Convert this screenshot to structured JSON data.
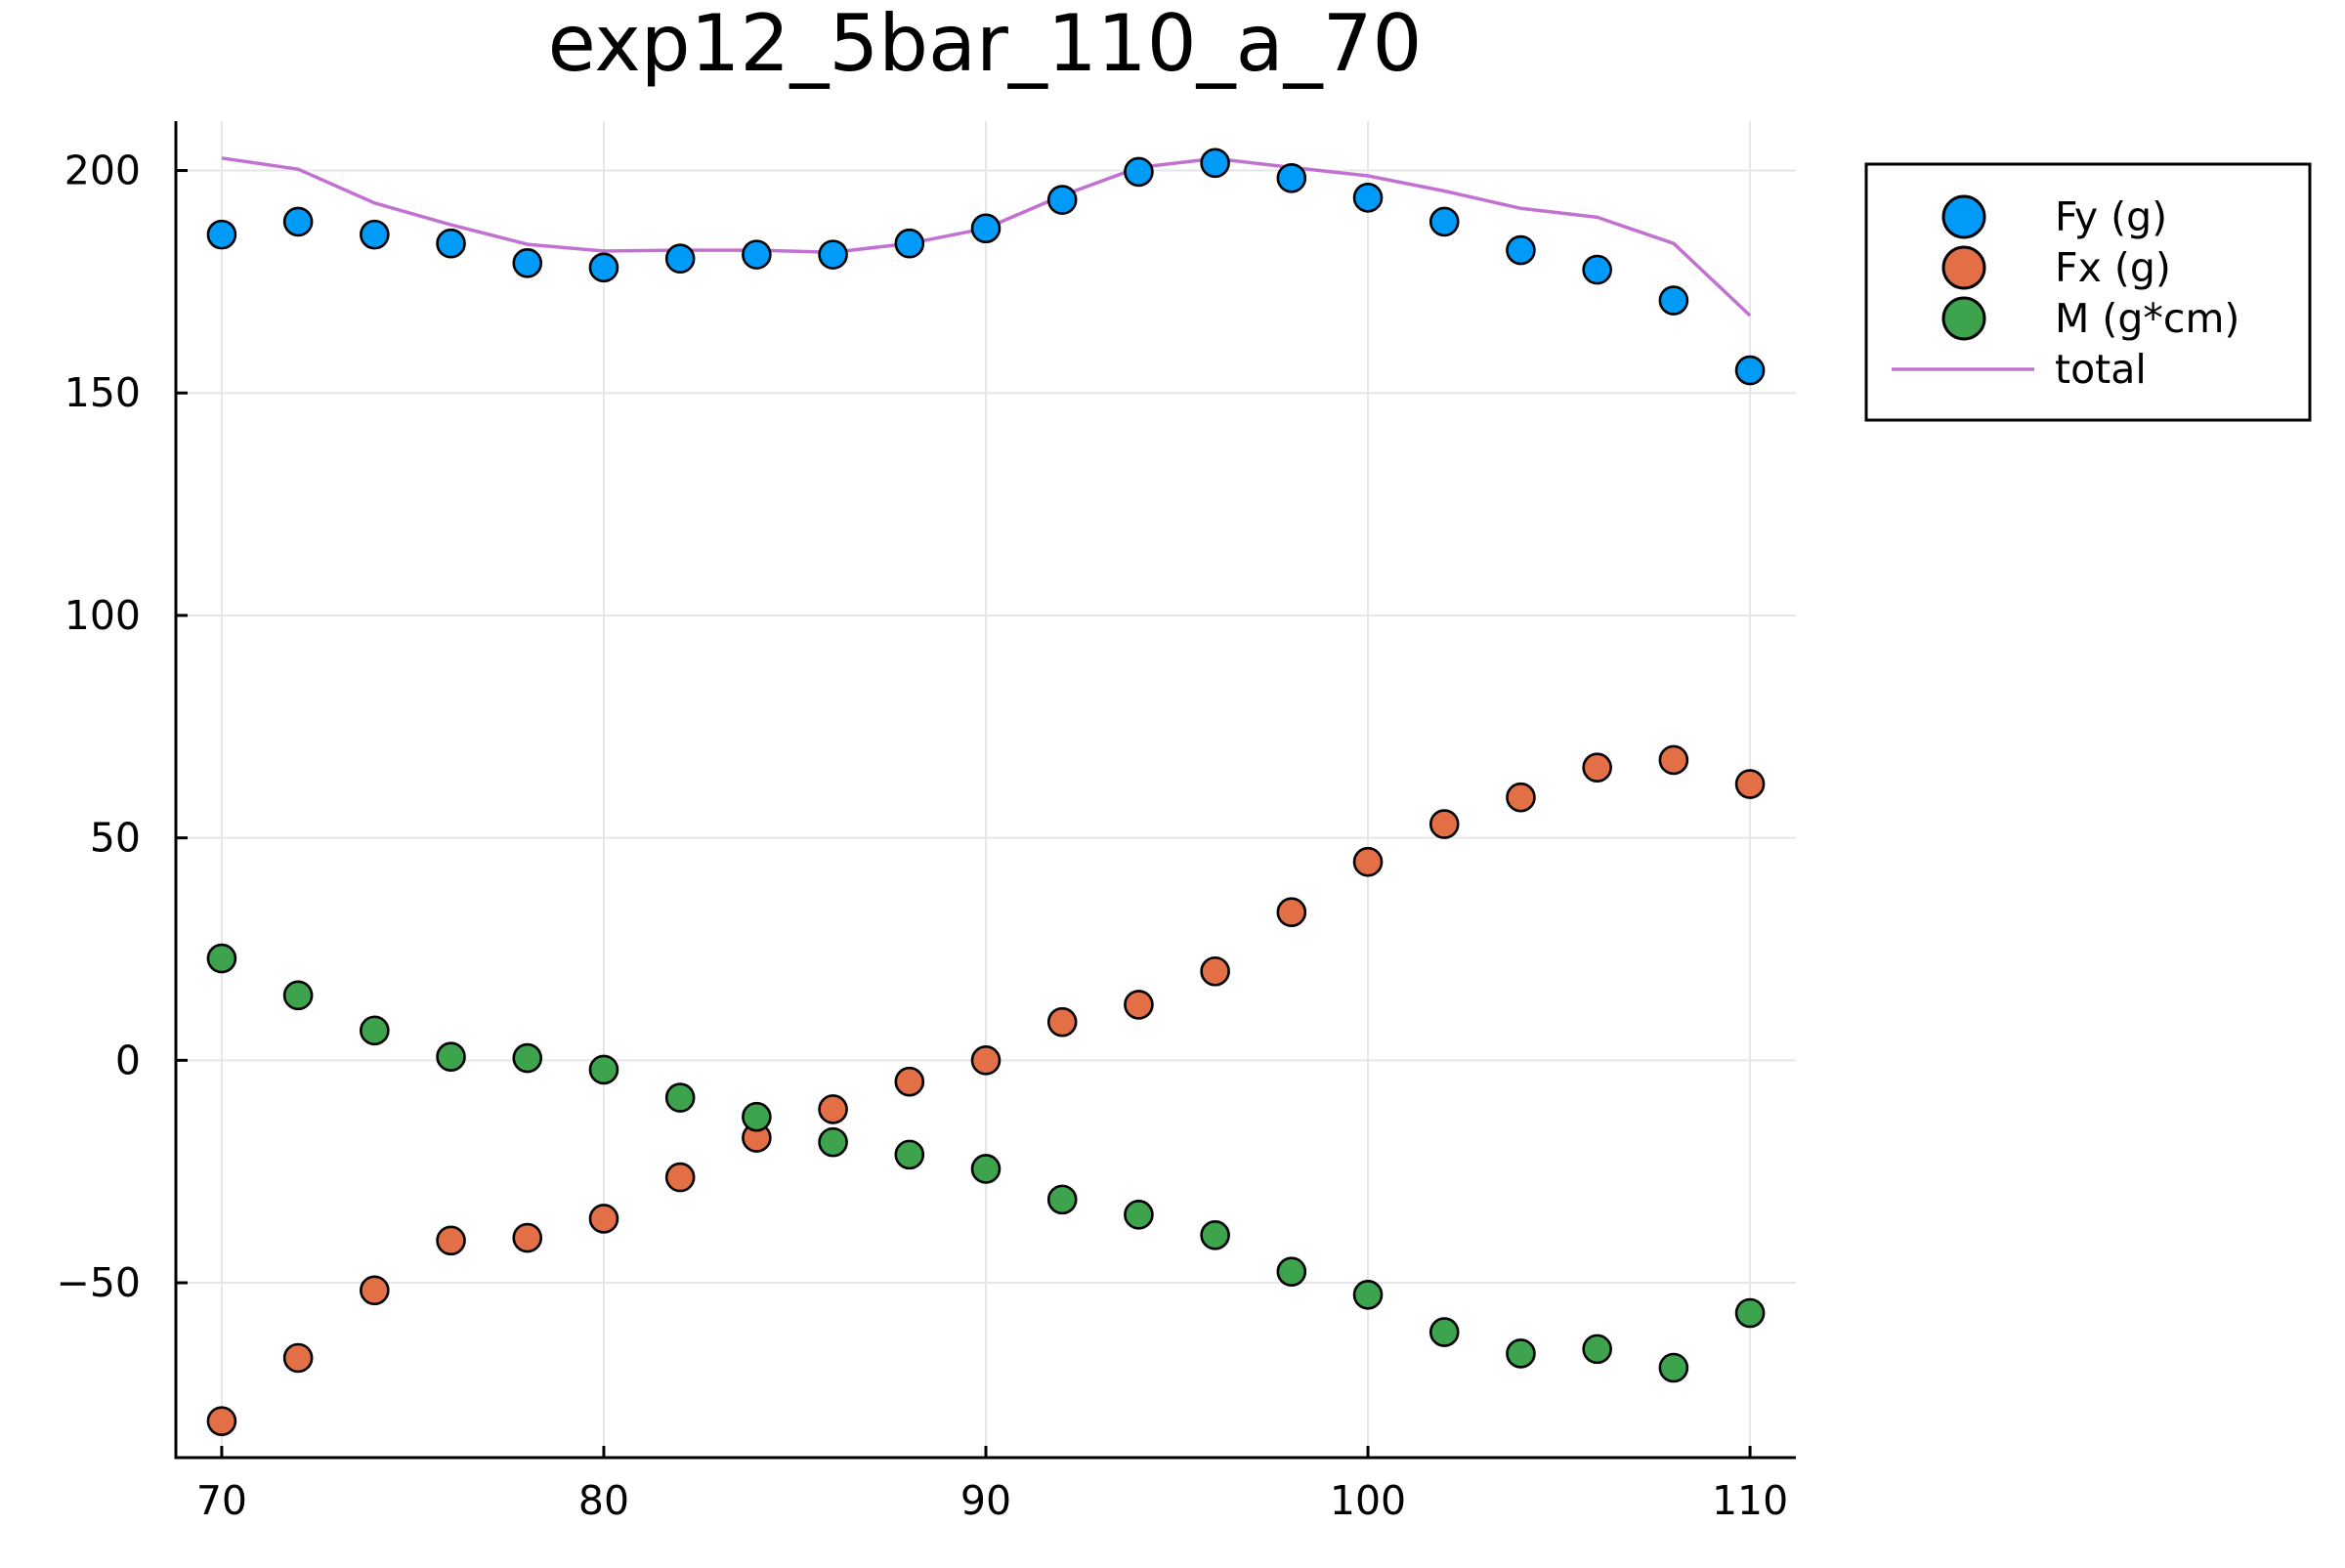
{
  "chart_data": {
    "type": "scatter",
    "title": "exp12_5bar_110_a_70",
    "xlabel": "",
    "ylabel": "",
    "xlim": [
      68.8,
      111.2
    ],
    "ylim": [
      -89.3,
      211.1
    ],
    "xticks": [
      70,
      80,
      90,
      100,
      110
    ],
    "xtick_labels": [
      "70",
      "80",
      "90",
      "100",
      "110"
    ],
    "yticks": [
      -50,
      0,
      50,
      100,
      150,
      200
    ],
    "ytick_labels": [
      "−50",
      "0",
      "50",
      "100",
      "150",
      "200"
    ],
    "grid": true,
    "legend_position": "top-right, outside plot area",
    "x": [
      70,
      72,
      74,
      76,
      78,
      80,
      82,
      84,
      86,
      88,
      90,
      92,
      94,
      96,
      98,
      100,
      102,
      104,
      106,
      108,
      110
    ],
    "series": [
      {
        "name": "Fy (g)",
        "type": "scatter",
        "color": "#009af9",
        "values": [
          185.6,
          188.5,
          185.6,
          183.6,
          179.2,
          178.2,
          180.2,
          181.1,
          181.1,
          183.6,
          187.0,
          193.4,
          199.7,
          201.7,
          198.3,
          193.9,
          188.5,
          182.1,
          177.7,
          170.8,
          155.1
        ]
      },
      {
        "name": "Fx (g)",
        "type": "scatter",
        "color": "#e26f46",
        "values": [
          -81.1,
          -66.9,
          -51.7,
          -40.5,
          -39.9,
          -35.6,
          -26.3,
          -17.4,
          -11.0,
          -4.8,
          0.0,
          8.6,
          12.5,
          20.0,
          33.3,
          44.6,
          53.1,
          59.1,
          65.8,
          67.5,
          62.1
        ]
      },
      {
        "name": "M (g*cm)",
        "type": "scatter",
        "color": "#3da44d",
        "values": [
          22.9,
          14.6,
          6.7,
          0.8,
          0.5,
          -2.1,
          -8.4,
          -12.7,
          -18.4,
          -21.2,
          -24.4,
          -31.3,
          -34.7,
          -39.3,
          -47.5,
          -52.7,
          -61.1,
          -65.9,
          -64.9,
          -69.1,
          -56.8
        ]
      },
      {
        "name": "total",
        "type": "line",
        "color": "#c271d2",
        "values": [
          202.8,
          200.3,
          192.7,
          187.8,
          183.4,
          181.9,
          182.1,
          182.1,
          181.6,
          183.6,
          187.0,
          194.4,
          200.7,
          202.7,
          200.7,
          198.8,
          195.4,
          191.5,
          189.5,
          183.6,
          167.4
        ]
      }
    ]
  }
}
